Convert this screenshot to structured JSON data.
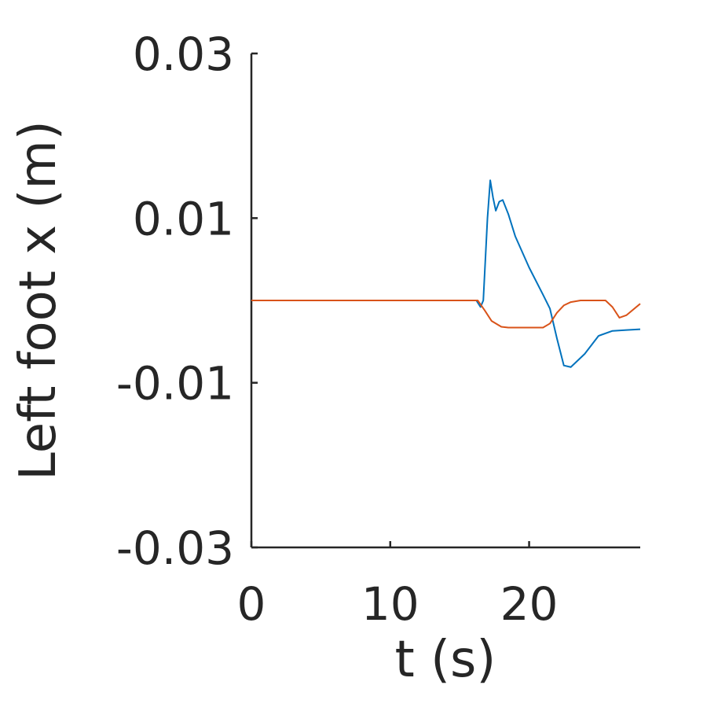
{
  "chart_data": {
    "type": "line",
    "xlabel": "t (s)",
    "ylabel": "Left foot x (m)",
    "xlim": [
      0,
      28
    ],
    "xticks": [
      0,
      10,
      20
    ],
    "ylim": [
      -0.03,
      0.03
    ],
    "yticks": [
      -0.03,
      -0.01,
      0.01,
      0.03
    ],
    "grid": false,
    "series": [
      {
        "color": "#0072BD",
        "x": [
          0,
          16.2,
          16.5,
          16.7,
          17.0,
          17.2,
          17.4,
          17.6,
          17.85,
          18.1,
          18.5,
          19,
          20,
          21,
          21.5,
          22,
          22.5,
          23,
          24,
          25,
          26,
          27,
          28
        ],
        "values": [
          0,
          0,
          -0.0008,
          0,
          0.01,
          0.0146,
          0.0125,
          0.0109,
          0.012,
          0.0122,
          0.0105,
          0.0078,
          0.004,
          0.0007,
          -0.001,
          -0.0046,
          -0.0079,
          -0.0081,
          -0.0065,
          -0.0043,
          -0.0037,
          -0.0036,
          -0.0035
        ]
      },
      {
        "color": "#D95319",
        "x": [
          0,
          16.3,
          16.8,
          17.3,
          18.0,
          18.5,
          21.0,
          21.5,
          22.0,
          22.5,
          23.0,
          23.7,
          25.5,
          26.0,
          26.5,
          27.0,
          28
        ],
        "values": [
          0,
          0,
          -0.0012,
          -0.0025,
          -0.0032,
          -0.0033,
          -0.0033,
          -0.0028,
          -0.0015,
          -0.0006,
          -0.0002,
          0,
          0,
          -0.0008,
          -0.0021,
          -0.0018,
          -0.0004
        ]
      }
    ]
  }
}
